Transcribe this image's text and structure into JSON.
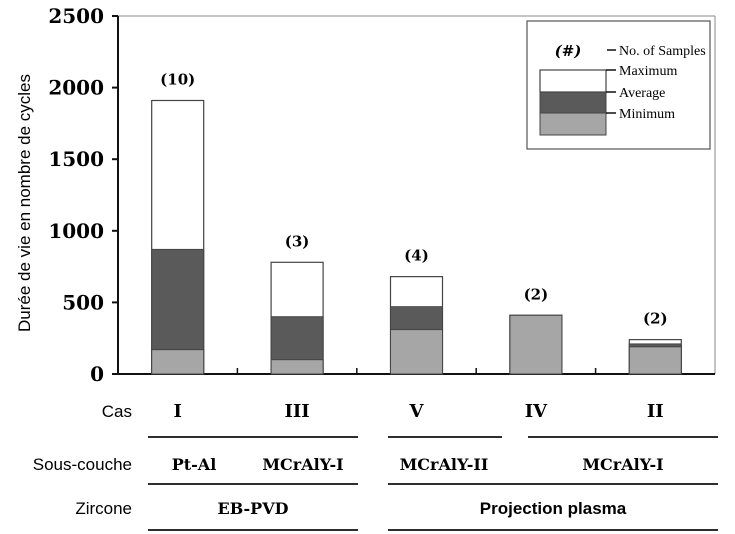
{
  "chart_data": {
    "type": "bar",
    "title": "",
    "ylabel": "Durée de vie en nombre de cycles",
    "ylim": [
      0,
      2500
    ],
    "yticks": [
      0,
      500,
      1000,
      1500,
      2000,
      2500
    ],
    "grid": false,
    "legend_position": "top-right",
    "categories": [
      "I",
      "III",
      "V",
      "IV",
      "II"
    ],
    "series": [
      {
        "name": "Minimum",
        "values": [
          170,
          100,
          310,
          410,
          190
        ],
        "color": "#a6a6a6"
      },
      {
        "name": "Average",
        "values": [
          870,
          400,
          470,
          410,
          210
        ],
        "color": "#5a5a5a"
      },
      {
        "name": "Maximum",
        "values": [
          1910,
          780,
          680,
          410,
          240
        ],
        "color": "#ffffff"
      }
    ],
    "sample_counts": [
      "(10)",
      "(3)",
      "(4)",
      "(2)",
      "(2)"
    ],
    "legend": {
      "symbol": "(#)",
      "samples_label": "No. of Samples",
      "maximum_label": "Maximum",
      "average_label": "Average",
      "minimum_label": "Minimum"
    },
    "rows": {
      "cas": {
        "label": "Cas",
        "values": [
          "I",
          "III",
          "V",
          "IV",
          "II"
        ]
      },
      "sous_couche": {
        "label": "Sous-couche",
        "groups": [
          {
            "text": "Pt-Al"
          },
          {
            "text": "MCrAlY-I"
          },
          {
            "text": "MCrAlY-II"
          },
          {
            "text": "MCrAlY-I"
          }
        ]
      },
      "zircone": {
        "label": "Zircone",
        "groups": [
          {
            "text": "EB-PVD"
          },
          {
            "text": "Projection plasma"
          }
        ]
      }
    }
  }
}
